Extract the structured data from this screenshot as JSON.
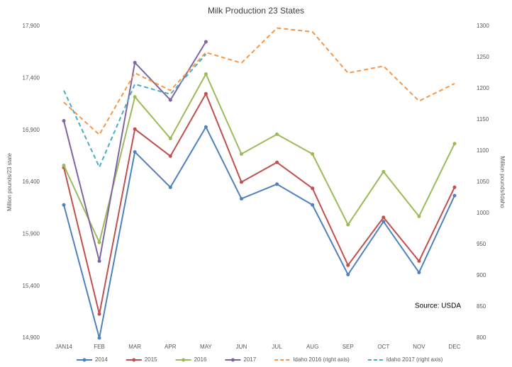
{
  "chart_data": {
    "type": "line",
    "title": "Milk Production 23 States",
    "y_label": "Million pounds/23 state",
    "y2_label": "Million pounds/Idaho",
    "annotation": "Source: USDA",
    "categories": [
      "JAN14",
      "FEB",
      "MAR",
      "APR",
      "MAY",
      "JUN",
      "JUL",
      "AUG",
      "SEP",
      "OCT",
      "NOV",
      "DEC"
    ],
    "ylim": [
      14900,
      17900
    ],
    "yticks": [
      {
        "value": 14900,
        "label": "14,900"
      },
      {
        "value": 15400,
        "label": "15,400"
      },
      {
        "value": 15900,
        "label": "15,900"
      },
      {
        "value": 16400,
        "label": "16,400"
      },
      {
        "value": 16900,
        "label": "16,900"
      },
      {
        "value": 17400,
        "label": "17,400"
      },
      {
        "value": 17900,
        "label": "17,900"
      }
    ],
    "y2lim": [
      800,
      1300
    ],
    "y2ticks": [
      800,
      850,
      900,
      950,
      1000,
      1050,
      1100,
      1150,
      1200,
      1250,
      1300
    ],
    "grid": false,
    "legend": "bottom",
    "series": [
      {
        "name": "2014",
        "color": "#4f81bd",
        "dashed": false,
        "values": [
          16180,
          14900,
          16690,
          16350,
          16930,
          16240,
          16380,
          16180,
          15510,
          16020,
          15530,
          16270
        ]
      },
      {
        "name": "2015",
        "color": "#c0504d",
        "dashed": false,
        "values": [
          16540,
          15130,
          16910,
          16650,
          17250,
          16400,
          16590,
          16340,
          15600,
          16060,
          15640,
          16350
        ]
      },
      {
        "name": "2016",
        "color": "#9bbb59",
        "dashed": false,
        "values": [
          16560,
          15820,
          17220,
          16820,
          17440,
          16670,
          16860,
          16670,
          15990,
          16500,
          16070,
          16770
        ]
      },
      {
        "name": "2017",
        "color": "#8064a2",
        "dashed": false,
        "values": [
          16990,
          15640,
          17550,
          17190,
          17750,
          null,
          null,
          null,
          null,
          null,
          null,
          null
        ]
      },
      {
        "name": "Idaho 2016 (right axis)",
        "color": "#f79646",
        "dashed": true,
        "axis": "y2",
        "values": [
          1178,
          1126,
          1225,
          1197,
          1258,
          1241,
          1297,
          1291,
          1225,
          1236,
          1180,
          1208
        ]
      },
      {
        "name": "Idaho 2017 (right axis)",
        "color": "#4bacc6",
        "dashed": true,
        "axis": "y2",
        "values": [
          1197,
          1074,
          1207,
          1191,
          1255,
          null,
          null,
          null,
          null,
          null,
          null,
          null
        ]
      }
    ]
  }
}
